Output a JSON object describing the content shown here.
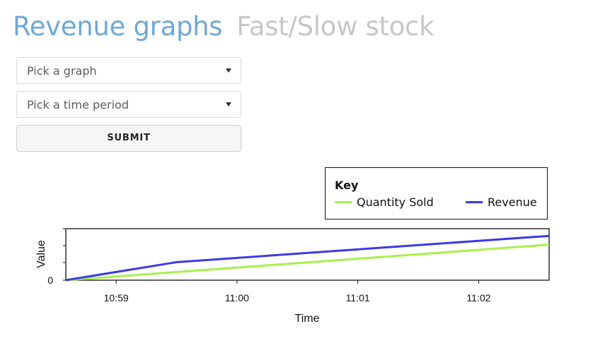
{
  "tabs": [
    {
      "label": "Revenue graphs",
      "active": true
    },
    {
      "label": "Fast/Slow stock",
      "active": false
    }
  ],
  "form": {
    "graph_select_placeholder": "Pick a graph",
    "period_select_placeholder": "Pick a time period",
    "submit_label": "SUBMIT"
  },
  "legend": {
    "title": "Key",
    "items": [
      {
        "label": "Quantity Sold",
        "color": "#a8f04a"
      },
      {
        "label": "Revenue",
        "color": "#3a3ae6"
      }
    ]
  },
  "chart_data": {
    "type": "line",
    "xlabel": "Time",
    "ylabel": "Value",
    "x_ticks": [
      "10:59",
      "11:00",
      "11:01",
      "11:02"
    ],
    "y_tick_labels": [
      "0"
    ],
    "series": [
      {
        "name": "Quantity Sold",
        "color": "#a8f04a",
        "x": [
          "10:58:35",
          "11:02:35"
        ],
        "y": [
          0,
          0.69
        ]
      },
      {
        "name": "Revenue",
        "color": "#3a3ae6",
        "x": [
          "10:58:35",
          "10:59:30",
          "11:02:35"
        ],
        "y": [
          0,
          0.35,
          0.86
        ]
      }
    ]
  }
}
